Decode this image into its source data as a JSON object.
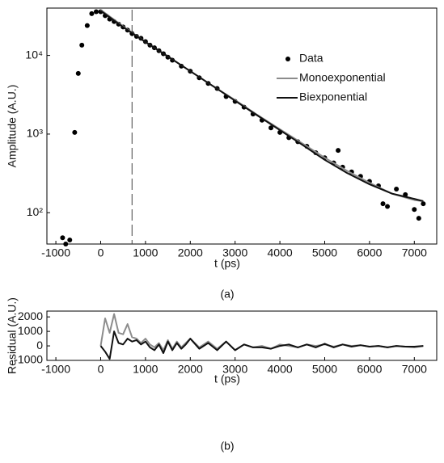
{
  "chart_data": [
    {
      "type": "line",
      "yscale": "log",
      "ylabel": "Amplitude (A.U.)",
      "xlabel": "t (ps)",
      "caption": "(a)",
      "xlim": [
        -1200,
        7500
      ],
      "xticks": [
        -1000,
        0,
        1000,
        2000,
        3000,
        4000,
        5000,
        6000,
        7000
      ],
      "ylim": [
        40,
        40000
      ],
      "yticks": [
        {
          "value": 100,
          "label": "10²"
        },
        {
          "value": 1000,
          "label": "10³"
        },
        {
          "value": 10000,
          "label": "10⁴"
        }
      ],
      "vline": 700,
      "series": [
        {
          "name": "Data",
          "color": "#000000",
          "mode": "markers",
          "x": [
            -850,
            -780,
            -690,
            -580,
            -500,
            -420,
            -300,
            -200,
            -100,
            0,
            100,
            200,
            300,
            400,
            500,
            600,
            700,
            800,
            900,
            1000,
            1100,
            1200,
            1300,
            1400,
            1500,
            1600,
            1800,
            2000,
            2200,
            2400,
            2600,
            2800,
            3000,
            3200,
            3400,
            3600,
            3800,
            4000,
            4200,
            4400,
            4600,
            4800,
            5000,
            5200,
            5300,
            5400,
            5600,
            5800,
            6000,
            6200,
            6300,
            6400,
            6600,
            6800,
            7000,
            7100,
            7200
          ],
          "values": [
            48,
            40,
            45,
            1050,
            5900,
            13500,
            24000,
            34000,
            36000,
            36000,
            32000,
            29000,
            27000,
            25000,
            23000,
            21000,
            19000,
            17500,
            16500,
            15000,
            13500,
            12500,
            11500,
            10500,
            9500,
            8700,
            7300,
            6300,
            5200,
            4400,
            3800,
            3000,
            2600,
            2200,
            1800,
            1500,
            1200,
            1050,
            900,
            800,
            700,
            580,
            500,
            430,
            620,
            380,
            330,
            290,
            250,
            220,
            130,
            120,
            200,
            170,
            110,
            85,
            130
          ]
        },
        {
          "name": "Monoexponential",
          "color": "#8c8c8c",
          "mode": "line",
          "x": [
            0,
            500,
            1000,
            1500,
            2000,
            2500,
            3000,
            3500,
            4000,
            4500,
            5000,
            5500,
            6000,
            6500,
            7000,
            7200
          ],
          "values": [
            38000,
            23500,
            14800,
            9700,
            6300,
            4100,
            2700,
            1750,
            1150,
            760,
            500,
            340,
            240,
            175,
            145,
            140
          ]
        },
        {
          "name": "Biexponential",
          "color": "#111111",
          "mode": "line",
          "x": [
            0,
            500,
            1000,
            1500,
            2000,
            2500,
            3000,
            3500,
            4000,
            4500,
            5000,
            5500,
            6000,
            6500,
            7000,
            7200
          ],
          "values": [
            37000,
            23000,
            14800,
            9700,
            6300,
            4100,
            2650,
            1720,
            1120,
            730,
            470,
            320,
            230,
            175,
            150,
            140
          ]
        }
      ]
    },
    {
      "type": "line",
      "ylabel": "Residual (A.U.)",
      "xlabel": "t (ps)",
      "caption": "(b)",
      "xlim": [
        -1200,
        7500
      ],
      "xticks": [
        -1000,
        0,
        1000,
        2000,
        3000,
        4000,
        5000,
        6000,
        7000
      ],
      "ylim": [
        -1000,
        2400
      ],
      "yticks": [
        -1000,
        0,
        1000,
        2000
      ],
      "series": [
        {
          "color": "#8c8c8c",
          "mode": "line",
          "x": [
            0,
            100,
            200,
            300,
            400,
            500,
            600,
            700,
            800,
            900,
            1000,
            1100,
            1200,
            1300,
            1400,
            1500,
            1600,
            1700,
            1800,
            1900,
            2000,
            2200,
            2400,
            2600,
            2800,
            3000,
            3200,
            3400,
            3600,
            3800,
            4000,
            4200,
            4400,
            4600,
            4800,
            5000,
            5200,
            5400,
            5600,
            5800,
            6000,
            6200,
            6400,
            6600,
            6800,
            7000,
            7200
          ],
          "values": [
            0,
            1900,
            900,
            2200,
            900,
            800,
            1500,
            600,
            500,
            200,
            500,
            100,
            -100,
            200,
            -300,
            400,
            -200,
            300,
            -100,
            200,
            500,
            -100,
            300,
            -200,
            300,
            -300,
            100,
            -100,
            0,
            -200,
            100,
            0,
            -100,
            100,
            0,
            100,
            -50,
            100,
            0,
            50,
            -50,
            0,
            -100,
            0,
            -50,
            -100,
            0
          ]
        },
        {
          "color": "#111111",
          "mode": "line",
          "x": [
            0,
            100,
            200,
            300,
            400,
            500,
            600,
            700,
            800,
            900,
            1000,
            1100,
            1200,
            1300,
            1400,
            1500,
            1600,
            1700,
            1800,
            1900,
            2000,
            2200,
            2400,
            2600,
            2800,
            3000,
            3200,
            3400,
            3600,
            3800,
            4000,
            4200,
            4400,
            4600,
            4800,
            5000,
            5200,
            5400,
            5600,
            5800,
            6000,
            6200,
            6400,
            6600,
            6800,
            7000,
            7200
          ],
          "values": [
            0,
            -400,
            -900,
            1000,
            200,
            100,
            500,
            300,
            400,
            100,
            300,
            -100,
            -300,
            100,
            -500,
            300,
            -300,
            200,
            -200,
            100,
            500,
            -200,
            200,
            -300,
            300,
            -300,
            100,
            -100,
            -100,
            -200,
            0,
            100,
            -100,
            100,
            -100,
            150,
            -100,
            100,
            -50,
            50,
            -50,
            0,
            -100,
            0,
            -50,
            -50,
            0
          ]
        }
      ]
    }
  ]
}
